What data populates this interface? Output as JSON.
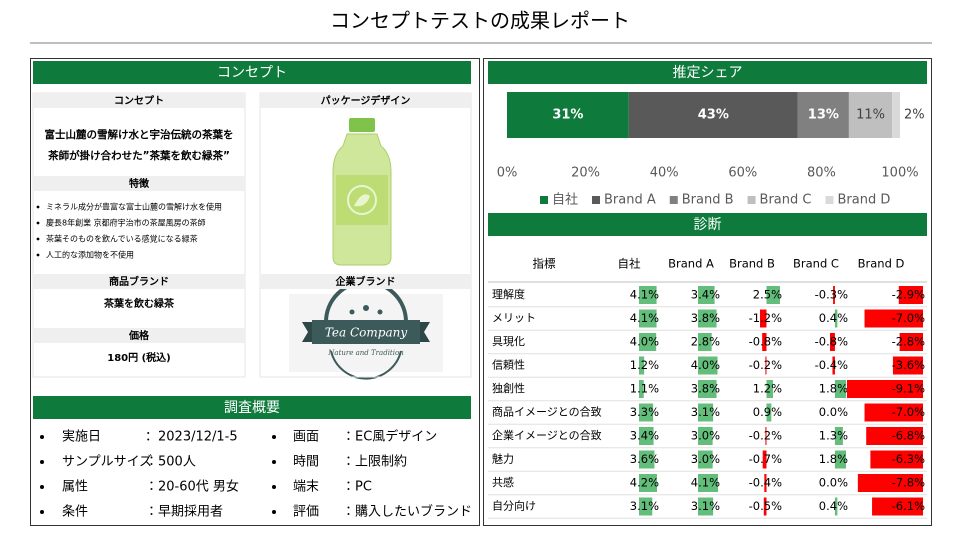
{
  "header": {
    "title": "コンセプトテストの成果レポート"
  },
  "concept": {
    "title": "コンセプト",
    "concept": {
      "label": "コンセプト",
      "lines": [
        "富士山麓の雪解け水と宇治伝統の茶葉を",
        "茶師が掛け合わせた”茶葉を飲む緑茶”"
      ]
    },
    "features": {
      "label": "特徴",
      "items": [
        "ミネラル成分が豊富な富士山麓の雪解け水を使用",
        "慶長8年創業 京都府宇治市の茶屋風房の茶師",
        "茶葉そのものを飲んでいる感覚になる緑茶",
        "人工的な添加物を不使用"
      ]
    },
    "product_brand": {
      "label": "商品ブランド",
      "value": "茶葉を飲む緑茶"
    },
    "price": {
      "label": "価格",
      "value": "180円 (税込)"
    },
    "package": {
      "label": "パッケージデザイン"
    },
    "corporate_brand": {
      "label": "企業ブランド",
      "logo_name": "Tea Company",
      "logo_tagline": "Nature and Tradition"
    }
  },
  "chart_data": {
    "type": "stacked-bar",
    "title": "推定シェア",
    "series": [
      {
        "name": "自社",
        "color": "#0e7a3c",
        "values": [
          31
        ],
        "value_labels": [
          "31%"
        ]
      },
      {
        "name": "Brand A",
        "color": "#595959",
        "values": [
          43
        ],
        "value_labels": [
          "43%"
        ]
      },
      {
        "name": "Brand B",
        "color": "#808080",
        "values": [
          13
        ],
        "value_labels": [
          "13%"
        ]
      },
      {
        "name": "Brand C",
        "color": "#bfbfbf",
        "values": [
          11
        ],
        "value_labels": [
          "11%"
        ]
      },
      {
        "name": "Brand D",
        "color": "#d9d9d9",
        "values": [
          2
        ],
        "value_labels": [
          "2%"
        ]
      }
    ],
    "xlim": [
      0,
      100
    ],
    "xticks": [
      {
        "value": 0,
        "label": "0%"
      },
      {
        "value": 20,
        "label": "20%"
      },
      {
        "value": 40,
        "label": "40%"
      },
      {
        "value": 60,
        "label": "60%"
      },
      {
        "value": 80,
        "label": "80%"
      },
      {
        "value": 100,
        "label": "100%"
      }
    ],
    "legend": "bottom"
  },
  "diagnosis": {
    "title": "診断",
    "columns": [
      "指標",
      "自社",
      "Brand A",
      "Brand B",
      "Brand C",
      "Brand D"
    ],
    "positive_color": "#63be7b",
    "negative_color": "#ff0000",
    "rows": [
      {
        "label": "理解度",
        "values": [
          4.1,
          3.4,
          2.5,
          -0.3,
          -2.9
        ],
        "value_labels": [
          "4.1%",
          "3.4%",
          "2.5%",
          "-0.3%",
          "-2.9%"
        ]
      },
      {
        "label": "メリット",
        "values": [
          4.1,
          3.8,
          -1.2,
          0.4,
          -7.0
        ],
        "value_labels": [
          "4.1%",
          "3.8%",
          "-1.2%",
          "0.4%",
          "-7.0%"
        ]
      },
      {
        "label": "具現化",
        "values": [
          4.0,
          2.8,
          -0.8,
          -0.8,
          -2.8
        ],
        "value_labels": [
          "4.0%",
          "2.8%",
          "-0.8%",
          "-0.8%",
          "-2.8%"
        ]
      },
      {
        "label": "信頼性",
        "values": [
          1.2,
          4.0,
          -0.2,
          -0.4,
          -3.6
        ],
        "value_labels": [
          "1.2%",
          "4.0%",
          "-0.2%",
          "-0.4%",
          "-3.6%"
        ]
      },
      {
        "label": "独創性",
        "values": [
          1.1,
          3.8,
          1.2,
          1.8,
          -9.1
        ],
        "value_labels": [
          "1.1%",
          "3.8%",
          "1.2%",
          "1.8%",
          "-9.1%"
        ]
      },
      {
        "label": "商品イメージとの合致",
        "values": [
          3.3,
          3.1,
          0.9,
          0.0,
          -7.0
        ],
        "value_labels": [
          "3.3%",
          "3.1%",
          "0.9%",
          "0.0%",
          "-7.0%"
        ]
      },
      {
        "label": "企業イメージとの合致",
        "values": [
          3.4,
          3.0,
          -0.2,
          1.3,
          -6.8
        ],
        "value_labels": [
          "3.4%",
          "3.0%",
          "-0.2%",
          "1.3%",
          "-6.8%"
        ]
      },
      {
        "label": "魅力",
        "values": [
          3.6,
          3.0,
          -0.7,
          1.8,
          -6.3
        ],
        "value_labels": [
          "3.6%",
          "3.0%",
          "-0.7%",
          "1.8%",
          "-6.3%"
        ]
      },
      {
        "label": "共感",
        "values": [
          4.2,
          4.1,
          -0.4,
          0.0,
          -7.8
        ],
        "value_labels": [
          "4.2%",
          "4.1%",
          "-0.4%",
          "0.0%",
          "-7.8%"
        ]
      },
      {
        "label": "自分向け",
        "values": [
          3.1,
          3.1,
          -0.5,
          0.4,
          -6.1
        ],
        "value_labels": [
          "3.1%",
          "3.1%",
          "-0.5%",
          "0.4%",
          "-6.1%"
        ]
      }
    ]
  },
  "survey": {
    "title": "調査概要",
    "items": [
      {
        "label": "実施日",
        "value": "：2023/12/1-5"
      },
      {
        "label": "サンプルサイズ",
        "value": "：500人"
      },
      {
        "label": "属性",
        "value": "：20-60代 男女"
      },
      {
        "label": "条件",
        "value": "：早期採用者"
      },
      {
        "label": "画面",
        "value": "：EC風デザイン"
      },
      {
        "label": "時間",
        "value": "：上限制約"
      },
      {
        "label": "端末",
        "value": "：PC"
      },
      {
        "label": "評価",
        "value": "：購入したいブランド"
      }
    ]
  }
}
